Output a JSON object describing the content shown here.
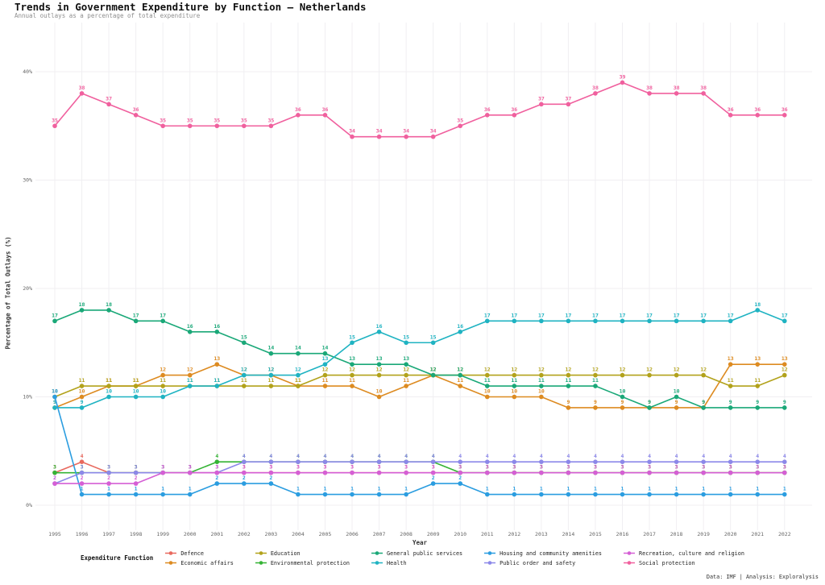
{
  "header": {
    "title": "Trends in Government Expenditure by Function — Netherlands",
    "subtitle": "Annual outlays as a percentage of total expenditure"
  },
  "footer": {
    "credit": "Data: IMF | Analysis: Exploralysis"
  },
  "chart_data": {
    "type": "line",
    "title": "Trends in Government Expenditure by Function — Netherlands",
    "subtitle": "Annual outlays as a percentage of total expenditure",
    "xlabel": "Year",
    "ylabel": "Percentage of Total Outlays (%)",
    "legend_title": "Expenditure Function",
    "legend_position": "bottom",
    "grid": true,
    "x": [
      1995,
      1996,
      1997,
      1998,
      1999,
      2000,
      2001,
      2002,
      2003,
      2004,
      2005,
      2006,
      2007,
      2008,
      2009,
      2010,
      2011,
      2012,
      2013,
      2014,
      2015,
      2016,
      2017,
      2018,
      2019,
      2020,
      2021,
      2022
    ],
    "yticks": [
      0,
      10,
      20,
      30,
      40
    ],
    "ytick_labels": [
      "0%",
      "10%",
      "20%",
      "30%",
      "40%"
    ],
    "ylim": [
      0,
      42
    ],
    "point_labels": true,
    "series": [
      {
        "name": "Defence",
        "color": "#e8695e",
        "values": [
          3,
          4,
          3,
          3,
          3,
          3,
          3,
          3,
          3,
          3,
          3,
          3,
          3,
          3,
          3,
          3,
          3,
          3,
          3,
          3,
          3,
          3,
          3,
          3,
          3,
          3,
          3,
          3
        ]
      },
      {
        "name": "Economic affairs",
        "color": "#dd8b21",
        "values": [
          9,
          10,
          11,
          11,
          12,
          12,
          13,
          12,
          12,
          11,
          11,
          11,
          10,
          11,
          12,
          11,
          10,
          10,
          10,
          9,
          9,
          9,
          9,
          9,
          9,
          13,
          13,
          13
        ]
      },
      {
        "name": "Education",
        "color": "#b2a21b",
        "values": [
          10,
          11,
          11,
          11,
          11,
          11,
          11,
          11,
          11,
          11,
          12,
          12,
          12,
          12,
          12,
          12,
          12,
          12,
          12,
          12,
          12,
          12,
          12,
          12,
          12,
          11,
          11,
          12
        ]
      },
      {
        "name": "Environmental protection",
        "color": "#35b335",
        "values": [
          3,
          3,
          3,
          3,
          3,
          3,
          4,
          4,
          4,
          4,
          4,
          4,
          4,
          4,
          4,
          3,
          3,
          3,
          3,
          3,
          3,
          3,
          3,
          3,
          3,
          3,
          3,
          3
        ]
      },
      {
        "name": "General public services",
        "color": "#1aa878",
        "values": [
          17,
          18,
          18,
          17,
          17,
          16,
          16,
          15,
          14,
          14,
          14,
          13,
          13,
          13,
          12,
          12,
          11,
          11,
          11,
          11,
          11,
          10,
          9,
          10,
          9,
          9,
          9,
          9
        ]
      },
      {
        "name": "Health",
        "color": "#1fb3c2",
        "values": [
          9,
          9,
          10,
          10,
          10,
          11,
          11,
          12,
          12,
          12,
          13,
          15,
          16,
          15,
          15,
          16,
          17,
          17,
          17,
          17,
          17,
          17,
          17,
          17,
          17,
          17,
          18,
          17
        ]
      },
      {
        "name": "Housing and community amenities",
        "color": "#2b9de0",
        "values": [
          10,
          1,
          1,
          1,
          1,
          1,
          2,
          2,
          2,
          1,
          1,
          1,
          1,
          1,
          2,
          2,
          1,
          1,
          1,
          1,
          1,
          1,
          1,
          1,
          1,
          1,
          1,
          1
        ]
      },
      {
        "name": "Public order and safety",
        "color": "#8c88e9",
        "values": [
          2,
          3,
          3,
          3,
          3,
          3,
          3,
          4,
          4,
          4,
          4,
          4,
          4,
          4,
          4,
          4,
          4,
          4,
          4,
          4,
          4,
          4,
          4,
          4,
          4,
          4,
          4,
          4
        ]
      },
      {
        "name": "Recreation, culture and religion",
        "color": "#d55fd5",
        "values": [
          2,
          2,
          2,
          2,
          3,
          3,
          3,
          3,
          3,
          3,
          3,
          3,
          3,
          3,
          3,
          3,
          3,
          3,
          3,
          3,
          3,
          3,
          3,
          3,
          3,
          3,
          3,
          3
        ]
      },
      {
        "name": "Social protection",
        "color": "#f0609e",
        "values": [
          35,
          38,
          37,
          36,
          35,
          35,
          35,
          35,
          35,
          36,
          36,
          34,
          34,
          34,
          34,
          35,
          36,
          36,
          37,
          37,
          38,
          39,
          38,
          38,
          38,
          36,
          36,
          36
        ]
      }
    ],
    "legend_columns": [
      [
        0,
        1
      ],
      [
        2,
        3
      ],
      [
        4,
        5
      ],
      [
        6,
        7
      ],
      [
        8,
        9
      ]
    ]
  }
}
